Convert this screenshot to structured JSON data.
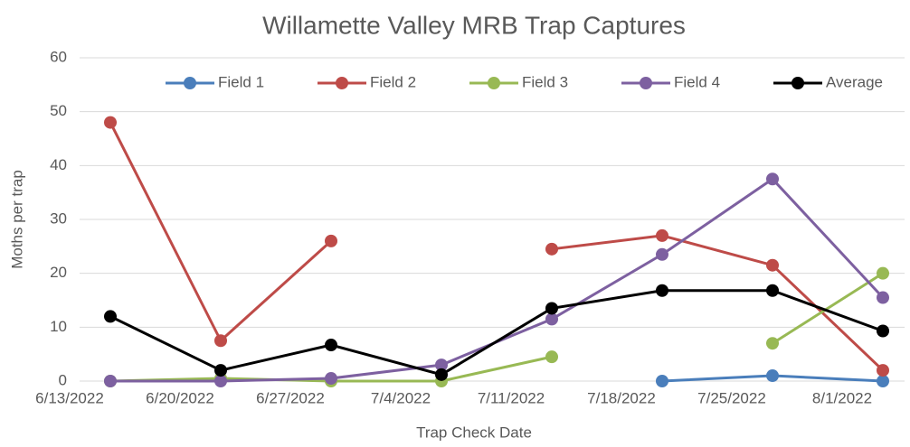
{
  "chart_data": {
    "type": "line",
    "title": "Willamette Valley MRB Trap Captures",
    "x_label": "Trap Check Date",
    "y_label": "Moths per trap",
    "categories": [
      "6/13/2022",
      "6/20/2022",
      "6/27/2022",
      "7/4/2022",
      "7/11/2022",
      "7/18/2022",
      "7/25/2022",
      "8/1/2022"
    ],
    "series": [
      {
        "name": "Field 1",
        "color": "#4a7ebb",
        "values": [
          null,
          null,
          null,
          null,
          null,
          0,
          1,
          0
        ]
      },
      {
        "name": "Field 2",
        "color": "#be4b48",
        "values": [
          48,
          7.5,
          26,
          null,
          24.5,
          27,
          21.5,
          2
        ]
      },
      {
        "name": "Field 3",
        "color": "#98b954",
        "values": [
          0,
          0.5,
          0,
          0,
          4.5,
          null,
          7,
          20
        ]
      },
      {
        "name": "Field 4",
        "color": "#7d60a0",
        "values": [
          0,
          0,
          0.5,
          3,
          11.5,
          23.5,
          37.5,
          15.5
        ]
      },
      {
        "name": "Average",
        "color": "#000000",
        "values": [
          12,
          2,
          6.7,
          1.2,
          13.5,
          16.8,
          16.8,
          9.3
        ]
      }
    ],
    "ylim": [
      0,
      60
    ],
    "yticks": [
      0,
      10,
      20,
      30,
      40,
      50,
      60
    ],
    "grid": true,
    "legend": "top"
  }
}
